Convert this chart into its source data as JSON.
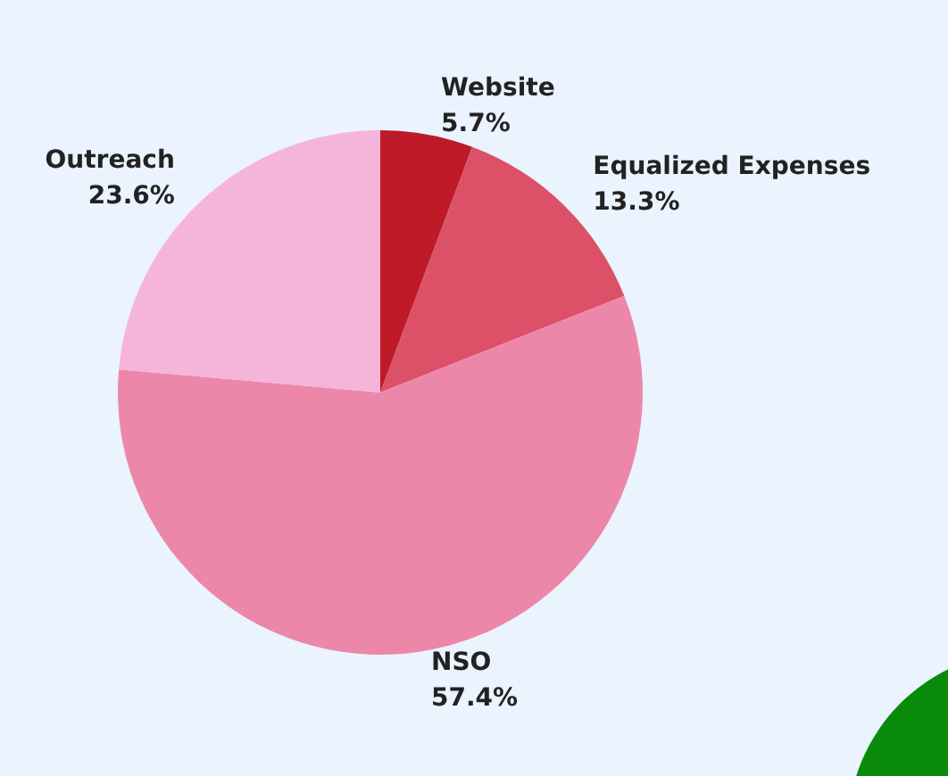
{
  "chart_data": {
    "type": "pie",
    "categories": [
      "Website",
      "Equalized Expenses",
      "NSO",
      "Outreach"
    ],
    "values": [
      5.7,
      13.3,
      57.4,
      23.6
    ],
    "value_labels": [
      "5.7%",
      "13.3%",
      "57.4%",
      "23.6%"
    ],
    "colors": [
      "#be1a28",
      "#dc5068",
      "#ed87a9",
      "#f5b5da"
    ],
    "legend": false
  }
}
